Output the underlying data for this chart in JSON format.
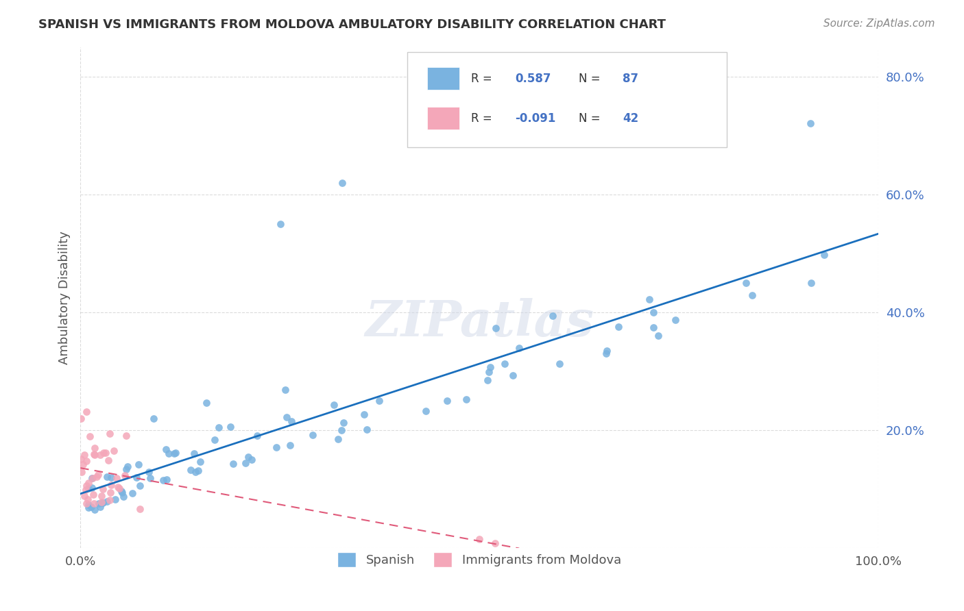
{
  "title": "SPANISH VS IMMIGRANTS FROM MOLDOVA AMBULATORY DISABILITY CORRELATION CHART",
  "source": "Source: ZipAtlas.com",
  "ylabel": "Ambulatory Disability",
  "xlim": [
    0,
    1.0
  ],
  "ylim": [
    0,
    0.85
  ],
  "spanish_color": "#7ab3e0",
  "moldova_color": "#f4a7b9",
  "spanish_line_color": "#1a6fbd",
  "moldova_line_color": "#e05a7a",
  "R_spanish": 0.587,
  "N_spanish": 87,
  "R_moldova": -0.091,
  "N_moldova": 42,
  "legend_label_spanish": "Spanish",
  "legend_label_moldova": "Immigrants from Moldova",
  "watermark": "ZIPatlas",
  "background_color": "#ffffff"
}
